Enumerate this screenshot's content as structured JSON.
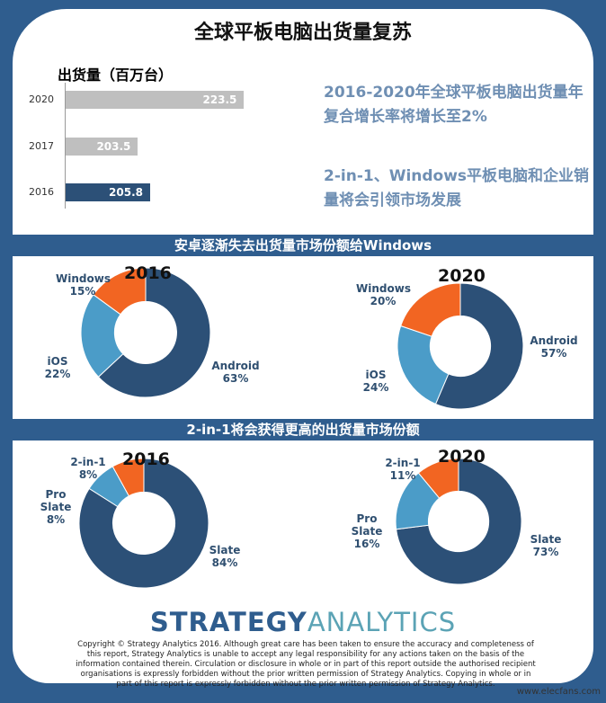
{
  "title": "全球平板电脑出货量复苏",
  "notes": [
    "2016-2020年全球平板电脑出货量年复合增长率将增长至2%",
    "2-in-1、Windows平板电脑和企业销量将会引领市场发展"
  ],
  "section2_title": "安卓逐渐失去出货量市场份额给Windows",
  "section3_title": "2-in-1将会获得更高的出货量市场份额",
  "logo": {
    "part1": "STRATEGY",
    "part2": "ANALYTICS"
  },
  "copyright": "Copyright © Strategy Analytics 2016. Although great care has been taken to ensure the accuracy and completeness of this report, Strategy Analytics is unable to accept any legal responsibility for any actions taken on the basis of the information contained therein. Circulation or disclosure in whole or in part of this report outside the authorised recipient organisations is expressly forbidden without the prior written permission of Strategy Analytics. Copying in whole or in part of this report is expressly forbidden without the prior written permission of Strategy Analytics.",
  "watermark": "www.elecfans.com",
  "colors": {
    "frame": "#2f5d8e",
    "dark": "#2c5077",
    "light": "#4b9cc8",
    "orange": "#f26522",
    "gray": "#bfbfbf"
  },
  "chart_data": [
    {
      "type": "bar",
      "title": "出货量（百万台）",
      "categories": [
        "2020",
        "2017",
        "2016"
      ],
      "values": [
        223.5,
        203.5,
        205.8
      ],
      "orientation": "horizontal"
    },
    {
      "type": "pie",
      "title": "2016",
      "labels": [
        "Android",
        "iOS",
        "Windows"
      ],
      "values": [
        63,
        22,
        15
      ],
      "display": [
        "63%",
        "22%",
        "15%"
      ]
    },
    {
      "type": "pie",
      "title": "2020",
      "labels": [
        "Android",
        "iOS",
        "Windows"
      ],
      "values": [
        57,
        24,
        20
      ],
      "display": [
        "57%",
        "24%",
        "20%"
      ]
    },
    {
      "type": "pie",
      "title": "2016",
      "labels": [
        "Slate",
        "Pro Slate",
        "2-in-1"
      ],
      "values": [
        84,
        8,
        8
      ],
      "display": [
        "84%",
        "8%",
        "8%"
      ]
    },
    {
      "type": "pie",
      "title": "2020",
      "labels": [
        "Slate",
        "Pro Slate",
        "2-in-1"
      ],
      "values": [
        73,
        16,
        11
      ],
      "display": [
        "73%",
        "16%",
        "11%"
      ]
    }
  ]
}
